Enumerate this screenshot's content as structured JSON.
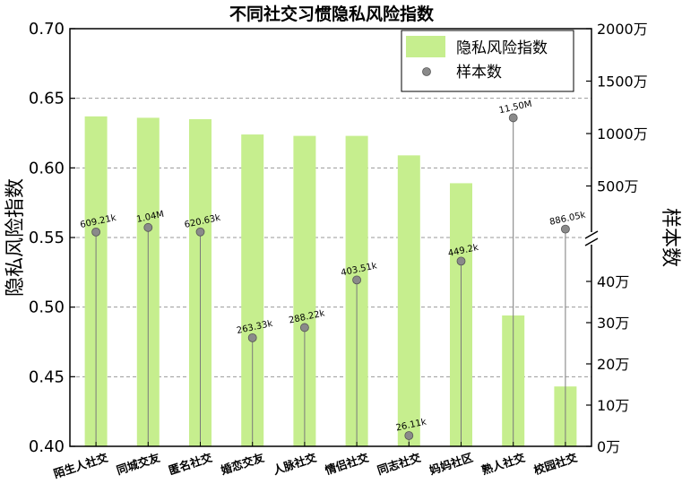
{
  "chart_data": {
    "type": "bar",
    "title": "不同社交习惯隐私风险指数",
    "categories": [
      "陌生人社交",
      "同城交友",
      "匿名社交",
      "婚恋交友",
      "人脉社交",
      "情侣社交",
      "同志社交",
      "妈妈社区",
      "熟人社交",
      "校园社交"
    ],
    "series": [
      {
        "name": "隐私风险指数",
        "kind": "bar",
        "axis": "left",
        "color": "#c6ee8e",
        "values": [
          0.637,
          0.636,
          0.635,
          0.624,
          0.623,
          0.623,
          0.609,
          0.589,
          0.494,
          0.443
        ]
      },
      {
        "name": "样本数",
        "kind": "scatter",
        "axis": "right",
        "color": "#8a8a8a",
        "values": [
          609210,
          1040000,
          620630,
          263330,
          288220,
          403510,
          26110,
          449200,
          11500000,
          886050
        ],
        "labels": [
          "609.21k",
          "1.04M",
          "620.63k",
          "263.33k",
          "288.22k",
          "403.51k",
          "26.11k",
          "449.2k",
          "11.50M",
          "886.05k"
        ]
      }
    ],
    "ylabel": "隐私风险指数",
    "ylim": [
      0.4,
      0.7
    ],
    "yticks": [
      "0.40",
      "0.45",
      "0.50",
      "0.55",
      "0.60",
      "0.65",
      "0.70"
    ],
    "y2label": "样本数",
    "y2_lower_range": [
      0,
      500000
    ],
    "y2_upper_range": [
      0,
      20000000
    ],
    "y2_lower_ticks": [
      {
        "value": 0,
        "label": "0万"
      },
      {
        "value": 100000,
        "label": "10万"
      },
      {
        "value": 200000,
        "label": "20万"
      },
      {
        "value": 300000,
        "label": "30万"
      },
      {
        "value": 400000,
        "label": "40万"
      }
    ],
    "y2_upper_ticks": [
      {
        "value": 5000000,
        "label": "500万"
      },
      {
        "value": 10000000,
        "label": "1000万"
      },
      {
        "value": 15000000,
        "label": "1500万"
      },
      {
        "value": 20000000,
        "label": "2000万"
      }
    ],
    "grid": "horizontal-dashed",
    "legend": "top-right"
  }
}
